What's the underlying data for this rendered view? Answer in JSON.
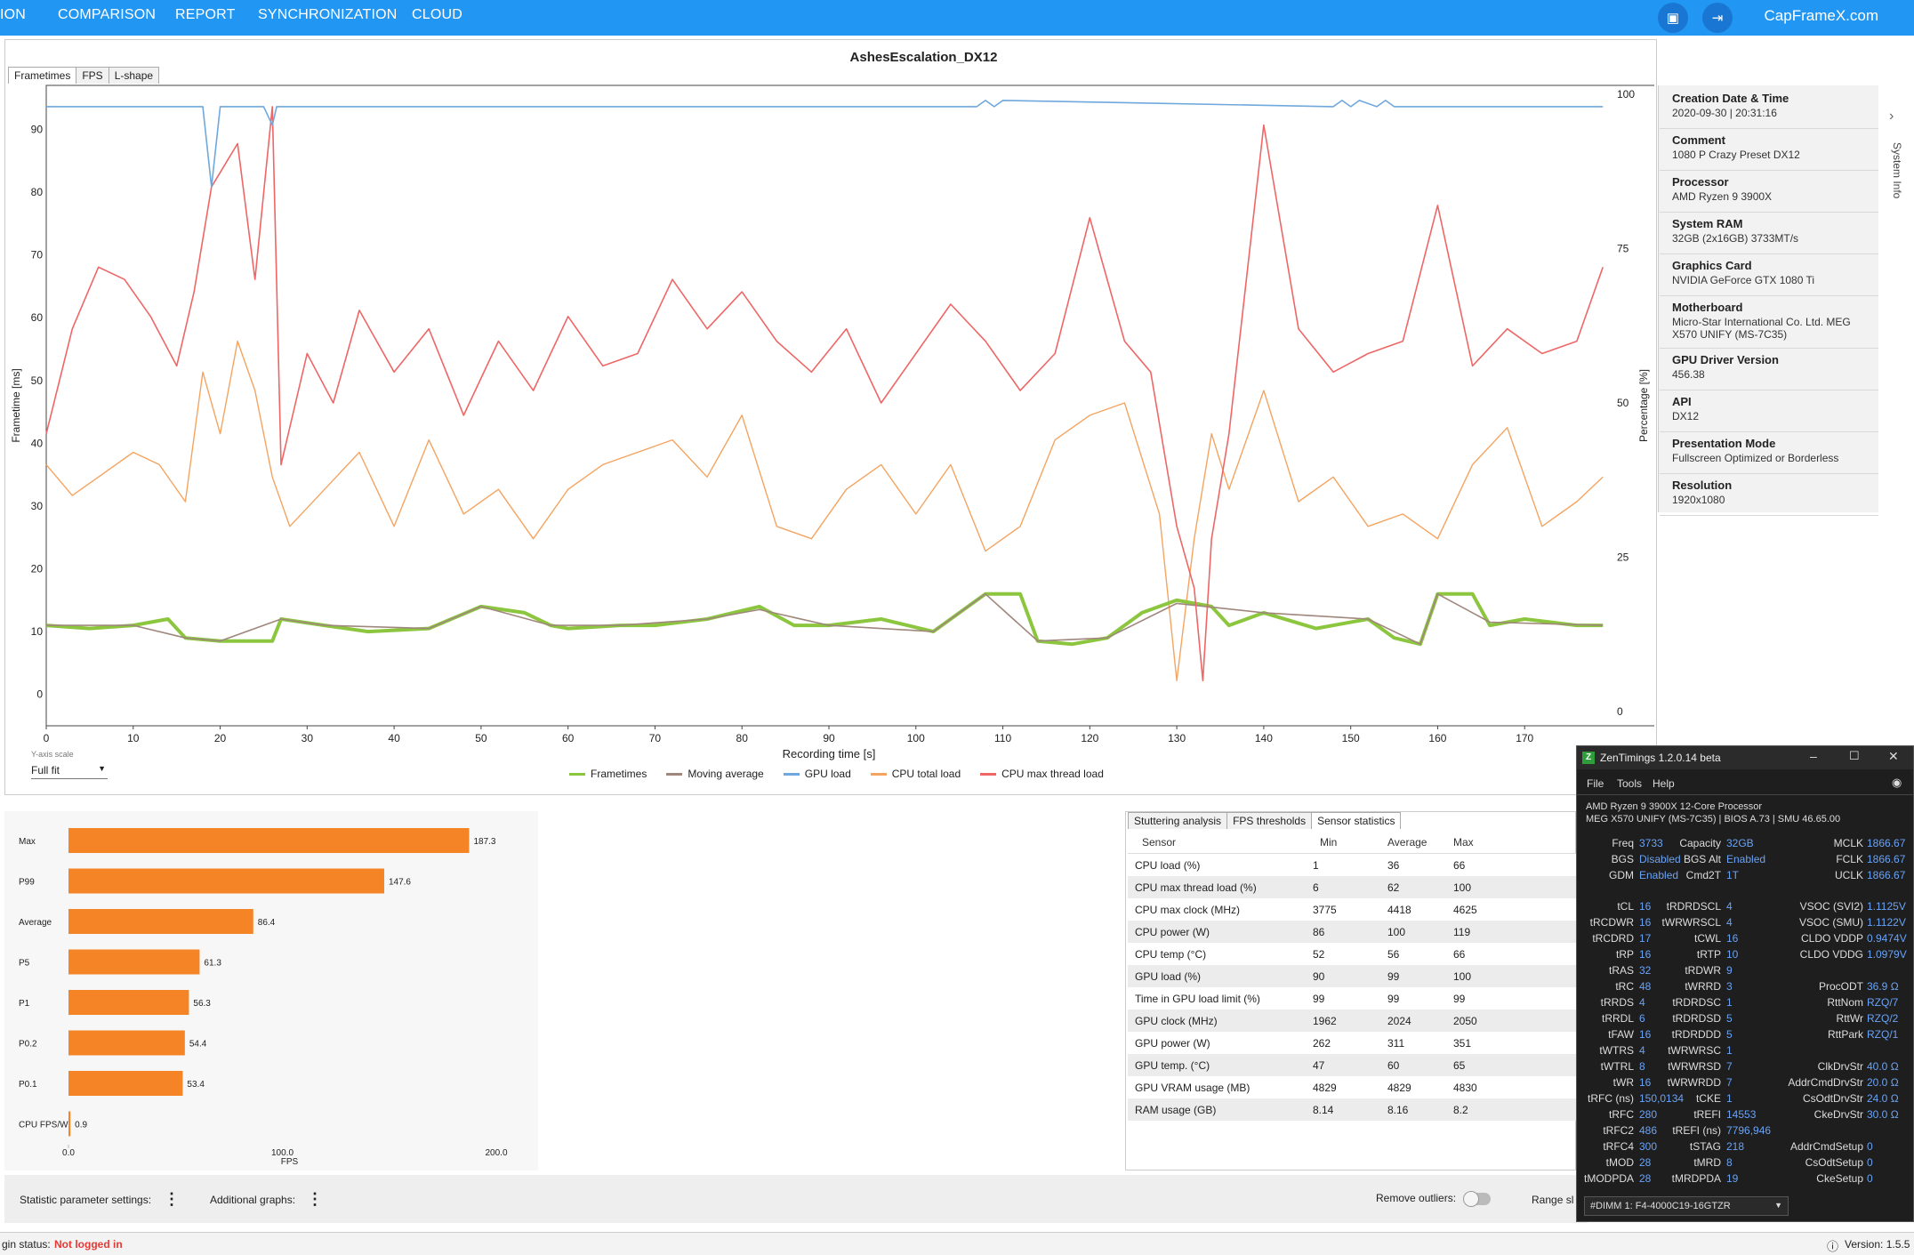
{
  "nav": {
    "items": [
      "ION",
      "COMPARISON",
      "REPORT",
      "SYNCHRONIZATION",
      "CLOUD"
    ],
    "brand": "CapFrameX.com"
  },
  "title": "AshesEscalation_DX12",
  "tabs": [
    "Frametimes",
    "FPS",
    "L-shape"
  ],
  "y_axis_scale": {
    "label": "Y-axis scale",
    "value": "Full fit"
  },
  "legend": [
    "Frametimes",
    "Moving average",
    "GPU load",
    "CPU total load",
    "CPU max thread load"
  ],
  "legend_colors": [
    "#8cc63f",
    "#a0877d",
    "#6fa8dc",
    "#f4a460",
    "#ee6666"
  ],
  "axes": {
    "xlabel": "Recording time [s]",
    "ylabel_left": "Frametime [ms]",
    "ylabel_right": "Percentage [%]"
  },
  "chart_data": [
    {
      "type": "line",
      "title": "AshesEscalation_DX12",
      "xlabel": "Recording time [s]",
      "ylabel": "Frametime [ms]",
      "ylabel_right": "Percentage [%]",
      "xlim": [
        0,
        180
      ],
      "ylim": [
        -5,
        97
      ],
      "ylim_right": [
        0,
        100
      ],
      "x_ticks": [
        0,
        10,
        20,
        30,
        40,
        50,
        60,
        70,
        80,
        90,
        100,
        110,
        120,
        130,
        140,
        150,
        160,
        170
      ],
      "y_ticks": [
        0,
        10,
        20,
        30,
        40,
        50,
        60,
        70,
        80,
        90
      ],
      "y_ticks_right": [
        0,
        25,
        50,
        75,
        100
      ],
      "grid": false,
      "legend_position": "bottom",
      "series": [
        {
          "name": "Frametimes",
          "axis": "left",
          "x": [
            0,
            5,
            10,
            14,
            16,
            20,
            26,
            27,
            32,
            37,
            44,
            50,
            55,
            58,
            60,
            66,
            70,
            76,
            82,
            86,
            90,
            96,
            102,
            106,
            108,
            112,
            114,
            118,
            122,
            126,
            130,
            134,
            136,
            140,
            146,
            152,
            155,
            158,
            160,
            164,
            166,
            170,
            176,
            179
          ],
          "y": [
            11,
            10.5,
            11,
            12,
            9,
            8.5,
            8.5,
            12,
            11,
            10,
            10.5,
            14,
            13,
            11,
            10.5,
            11,
            11,
            12,
            14,
            11,
            11,
            12,
            10,
            14,
            16,
            16,
            8.5,
            8,
            9,
            13,
            15,
            14,
            11,
            13,
            10.5,
            12,
            9,
            8,
            16,
            16,
            11,
            12,
            11,
            11
          ]
        },
        {
          "name": "Moving average",
          "axis": "left",
          "x": [
            0,
            10,
            16,
            20,
            27,
            32,
            44,
            50,
            58,
            66,
            76,
            82,
            90,
            102,
            108,
            114,
            122,
            130,
            140,
            152,
            158,
            160,
            166,
            179
          ],
          "y": [
            11,
            11,
            9,
            8.5,
            12,
            11,
            10.5,
            14,
            11,
            11,
            12,
            13.5,
            11,
            10,
            16,
            8.5,
            9,
            14.5,
            13,
            12,
            8,
            16,
            11.5,
            11
          ]
        },
        {
          "name": "GPU load",
          "axis": "right",
          "x": [
            0,
            18,
            19,
            20,
            25,
            26,
            26.5,
            107,
            108,
            109,
            110,
            148,
            149,
            150,
            151,
            153,
            154,
            155,
            179
          ],
          "y": [
            98,
            98,
            85,
            98,
            98,
            95,
            98,
            98,
            99,
            98,
            99,
            98,
            99,
            98,
            99,
            98,
            99,
            98,
            98
          ]
        },
        {
          "name": "CPU total load",
          "axis": "right",
          "x": [
            0,
            3,
            6,
            10,
            13,
            16,
            18,
            20,
            22,
            24,
            26,
            28,
            32,
            36,
            40,
            44,
            48,
            52,
            56,
            60,
            64,
            68,
            72,
            76,
            80,
            84,
            88,
            92,
            96,
            100,
            104,
            108,
            112,
            116,
            120,
            124,
            128,
            130,
            132,
            134,
            136,
            140,
            144,
            148,
            152,
            156,
            160,
            164,
            168,
            172,
            176,
            179
          ],
          "y": [
            40,
            35,
            38,
            42,
            40,
            34,
            55,
            45,
            60,
            52,
            38,
            30,
            36,
            42,
            30,
            44,
            32,
            36,
            28,
            36,
            40,
            42,
            44,
            38,
            48,
            30,
            28,
            36,
            40,
            32,
            40,
            26,
            30,
            44,
            48,
            50,
            32,
            5,
            28,
            45,
            36,
            52,
            34,
            38,
            30,
            32,
            28,
            40,
            46,
            30,
            34,
            38
          ]
        },
        {
          "name": "CPU max thread load",
          "axis": "right",
          "x": [
            0,
            3,
            6,
            9,
            12,
            15,
            17,
            19,
            22,
            24,
            26,
            27,
            30,
            33,
            36,
            40,
            44,
            48,
            52,
            56,
            60,
            64,
            68,
            72,
            76,
            80,
            84,
            88,
            92,
            96,
            100,
            104,
            108,
            112,
            116,
            120,
            124,
            127,
            130,
            132,
            133,
            134,
            136,
            140,
            144,
            148,
            152,
            156,
            160,
            164,
            168,
            172,
            176,
            179
          ],
          "y": [
            45,
            62,
            72,
            70,
            64,
            56,
            68,
            85,
            92,
            70,
            98,
            40,
            58,
            50,
            65,
            55,
            62,
            48,
            60,
            52,
            64,
            56,
            58,
            70,
            62,
            68,
            60,
            55,
            62,
            50,
            58,
            66,
            60,
            52,
            58,
            80,
            60,
            55,
            30,
            20,
            5,
            28,
            45,
            95,
            62,
            55,
            58,
            60,
            82,
            56,
            62,
            58,
            60,
            72
          ]
        }
      ]
    },
    {
      "type": "bar",
      "orientation": "horizontal",
      "categories": [
        "Max",
        "P99",
        "Average",
        "P5",
        "P1",
        "P0.2",
        "P0.1",
        "CPU FPS/W"
      ],
      "values": [
        187.3,
        147.6,
        86.4,
        61.3,
        56.3,
        54.4,
        53.4,
        0.9
      ],
      "xlabel": "FPS",
      "xlim": [
        0,
        200
      ],
      "x_ticks": [
        "0.0",
        "100.0",
        "200.0"
      ],
      "color": "#f58426"
    }
  ],
  "system_info": {
    "side_label": "System Info",
    "items": [
      {
        "label": "Creation Date & Time",
        "value": "2020-09-30  |  20:31:16"
      },
      {
        "label": "Comment",
        "value": "1080 P Crazy Preset DX12"
      },
      {
        "label": "Processor",
        "value": "AMD Ryzen 9 3900X"
      },
      {
        "label": "System RAM",
        "value": "32GB (2x16GB) 3733MT/s"
      },
      {
        "label": "Graphics Card",
        "value": "NVIDIA GeForce GTX 1080 Ti"
      },
      {
        "label": "Motherboard",
        "value": "Micro-Star International Co. Ltd. MEG X570 UNIFY (MS-7C35)"
      },
      {
        "label": "GPU Driver Version",
        "value": "456.38"
      },
      {
        "label": "API",
        "value": "DX12"
      },
      {
        "label": "Presentation Mode",
        "value": "Fullscreen Optimized or Borderless"
      },
      {
        "label": "Resolution",
        "value": "1920x1080"
      }
    ]
  },
  "stats_tabs": [
    "Stuttering analysis",
    "FPS thresholds",
    "Sensor statistics"
  ],
  "sensor_table": {
    "headers": [
      "Sensor",
      "Min",
      "Average",
      "Max"
    ],
    "rows": [
      [
        "CPU load (%)",
        "1",
        "36",
        "66"
      ],
      [
        "CPU max thread load (%)",
        "6",
        "62",
        "100"
      ],
      [
        "CPU max clock (MHz)",
        "3775",
        "4418",
        "4625"
      ],
      [
        "CPU power (W)",
        "86",
        "100",
        "119"
      ],
      [
        "CPU temp (°C)",
        "52",
        "56",
        "66"
      ],
      [
        "GPU load (%)",
        "90",
        "99",
        "100"
      ],
      [
        "Time in GPU load limit (%)",
        "99",
        "99",
        "99"
      ],
      [
        "GPU clock (MHz)",
        "1962",
        "2024",
        "2050"
      ],
      [
        "GPU power (W)",
        "262",
        "311",
        "351"
      ],
      [
        "GPU temp. (°C)",
        "47",
        "60",
        "65"
      ],
      [
        "GPU VRAM usage (MB)",
        "4829",
        "4829",
        "4830"
      ],
      [
        "RAM usage (GB)",
        "8.14",
        "8.16",
        "8.2"
      ]
    ]
  },
  "bottom_bar": {
    "stat_settings": "Statistic parameter settings:",
    "additional_graphs": "Additional graphs:",
    "remove_outliers": "Remove outliers:",
    "range_slider": "Range sl"
  },
  "status": {
    "login_label": "gin status:",
    "login_value": "Not logged in",
    "version": "Version: 1.5.5"
  },
  "zentimings": {
    "title": "ZenTimings 1.2.0.14 beta",
    "menu": [
      "File",
      "Tools",
      "Help"
    ],
    "cpu": "AMD Ryzen 9 3900X 12-Core Processor",
    "board": "MEG X570 UNIFY (MS-7C35) | BIOS A.73 | SMU 46.65.00",
    "top_rows": [
      [
        [
          "Freq",
          "3733"
        ],
        [
          "Capacity",
          "32GB"
        ],
        [
          "MCLK",
          "1866.67"
        ]
      ],
      [
        [
          "BGS",
          "Disabled"
        ],
        [
          "BGS Alt",
          "Enabled"
        ],
        [
          "FCLK",
          "1866.67"
        ]
      ],
      [
        [
          "GDM",
          "Enabled"
        ],
        [
          "Cmd2T",
          "1T"
        ],
        [
          "UCLK",
          "1866.67"
        ]
      ]
    ],
    "rows": [
      [
        [
          "tCL",
          "16"
        ],
        [
          "tRDRDSCL",
          "4"
        ],
        [
          "VSOC (SVI2)",
          "1.1125V"
        ]
      ],
      [
        [
          "tRCDWR",
          "16"
        ],
        [
          "tWRWRSCL",
          "4"
        ],
        [
          "VSOC (SMU)",
          "1.1122V"
        ]
      ],
      [
        [
          "tRCDRD",
          "17"
        ],
        [
          "tCWL",
          "16"
        ],
        [
          "CLDO VDDP",
          "0.9474V"
        ]
      ],
      [
        [
          "tRP",
          "16"
        ],
        [
          "tRTP",
          "10"
        ],
        [
          "CLDO VDDG",
          "1.0979V"
        ]
      ],
      [
        [
          "tRAS",
          "32"
        ],
        [
          "tRDWR",
          "9"
        ],
        [
          "",
          ""
        ]
      ],
      [
        [
          "tRC",
          "48"
        ],
        [
          "tWRRD",
          "3"
        ],
        [
          "ProcODT",
          "36.9 Ω"
        ]
      ],
      [
        [
          "tRRDS",
          "4"
        ],
        [
          "tRDRDSC",
          "1"
        ],
        [
          "RttNom",
          "RZQ/7"
        ]
      ],
      [
        [
          "tRRDL",
          "6"
        ],
        [
          "tRDRDSD",
          "5"
        ],
        [
          "RttWr",
          "RZQ/2"
        ]
      ],
      [
        [
          "tFAW",
          "16"
        ],
        [
          "tRDRDDD",
          "5"
        ],
        [
          "RttPark",
          "RZQ/1"
        ]
      ],
      [
        [
          "tWTRS",
          "4"
        ],
        [
          "tWRWRSC",
          "1"
        ],
        [
          "",
          ""
        ]
      ],
      [
        [
          "tWTRL",
          "8"
        ],
        [
          "tWRWRSD",
          "7"
        ],
        [
          "ClkDrvStr",
          "40.0 Ω"
        ]
      ],
      [
        [
          "tWR",
          "16"
        ],
        [
          "tWRWRDD",
          "7"
        ],
        [
          "AddrCmdDrvStr",
          "20.0 Ω"
        ]
      ],
      [
        [
          "tRFC (ns)",
          "150,0134"
        ],
        [
          "tCKE",
          "1"
        ],
        [
          "CsOdtDrvStr",
          "24.0 Ω"
        ]
      ],
      [
        [
          "tRFC",
          "280"
        ],
        [
          "tREFI",
          "14553"
        ],
        [
          "CkeDrvStr",
          "30.0 Ω"
        ]
      ],
      [
        [
          "tRFC2",
          "486"
        ],
        [
          "tREFI (ns)",
          "7796,946"
        ],
        [
          "",
          ""
        ]
      ],
      [
        [
          "tRFC4",
          "300"
        ],
        [
          "tSTAG",
          "218"
        ],
        [
          "AddrCmdSetup",
          "0"
        ]
      ],
      [
        [
          "tMOD",
          "28"
        ],
        [
          "tMRD",
          "8"
        ],
        [
          "CsOdtSetup",
          "0"
        ]
      ],
      [
        [
          "tMODPDA",
          "28"
        ],
        [
          "tMRDPDA",
          "19"
        ],
        [
          "CkeSetup",
          "0"
        ]
      ]
    ],
    "dimm": "#DIMM 1: F4-4000C19-16GTZR"
  }
}
